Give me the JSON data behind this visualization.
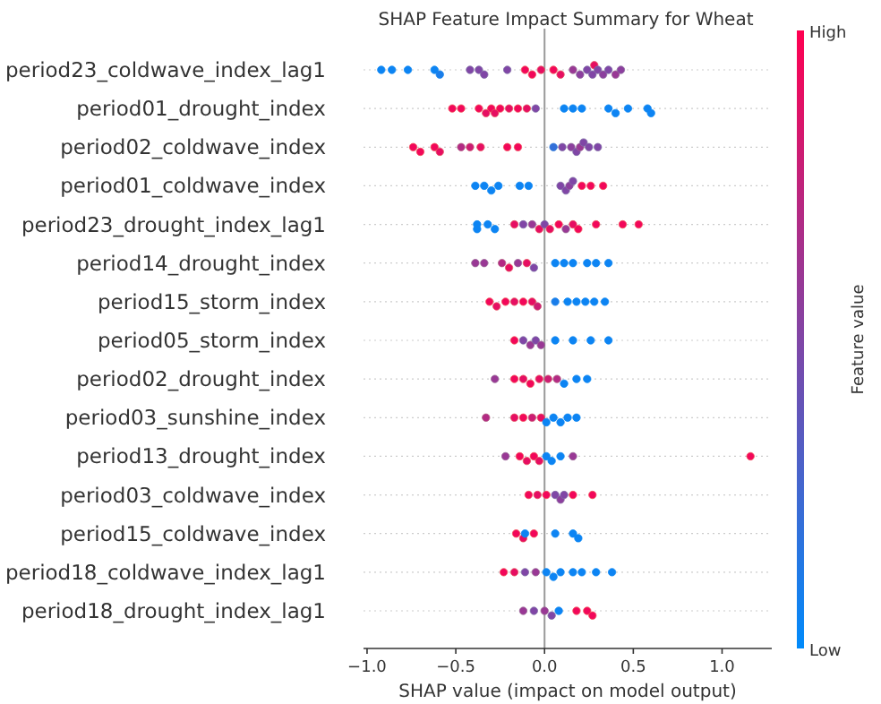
{
  "chart_data": {
    "type": "scatter",
    "orientation": "horizontal",
    "title": "SHAP Feature Impact Summary for Wheat",
    "xlabel": "SHAP value (impact on model output)",
    "clabel": "Feature value",
    "categories": [
      "period23_coldwave_index_lag1",
      "period01_drought_index",
      "period02_coldwave_index",
      "period01_coldwave_index",
      "period23_drought_index_lag1",
      "period14_drought_index",
      "period15_storm_index",
      "period05_storm_index",
      "period02_drought_index",
      "period03_sunshine_index",
      "period13_drought_index",
      "period03_coldwave_index",
      "period15_coldwave_index",
      "period18_coldwave_index_lag1",
      "period18_drought_index_lag1"
    ],
    "xlim": [
      -1.02,
      1.28
    ],
    "xticks": [
      {
        "value": -1,
        "label": "−1.0"
      },
      {
        "value": -0.5,
        "label": "−0.5"
      },
      {
        "value": 0,
        "label": "0.0"
      },
      {
        "value": 0.5,
        "label": "0.5"
      },
      {
        "value": 1,
        "label": "1.0"
      }
    ],
    "clim": [
      0,
      1
    ],
    "cticks": [
      {
        "value": 0,
        "label": "Low"
      },
      {
        "value": 1,
        "label": "High"
      }
    ],
    "grid": "y",
    "marker": "circle",
    "ref_lines": [
      {
        "axis": "x",
        "value": 0,
        "color": "#999999"
      }
    ],
    "series": [
      {
        "x": [
          "period23_coldwave_index_lag1",
          "period23_coldwave_index_lag1",
          "period23_coldwave_index_lag1",
          "period23_coldwave_index_lag1",
          "period23_coldwave_index_lag1",
          "period23_coldwave_index_lag1",
          "period23_coldwave_index_lag1",
          "period23_coldwave_index_lag1",
          "period23_coldwave_index_lag1",
          "period23_coldwave_index_lag1",
          "period23_coldwave_index_lag1",
          "period23_coldwave_index_lag1",
          "period23_coldwave_index_lag1",
          "period23_coldwave_index_lag1",
          "period23_coldwave_index_lag1",
          "period23_coldwave_index_lag1",
          "period23_coldwave_index_lag1",
          "period23_coldwave_index_lag1",
          "period23_coldwave_index_lag1",
          "period23_coldwave_index_lag1",
          "period23_coldwave_index_lag1",
          "period23_coldwave_index_lag1",
          "period23_coldwave_index_lag1",
          "period23_coldwave_index_lag1"
        ],
        "values": [
          -0.92,
          -0.86,
          -0.77,
          -0.62,
          -0.59,
          -0.42,
          -0.37,
          -0.34,
          -0.21,
          -0.11,
          -0.07,
          -0.02,
          0.05,
          0.09,
          0.16,
          0.2,
          0.24,
          0.27,
          0.28,
          0.3,
          0.33,
          0.36,
          0.4,
          0.43
        ],
        "cvalues": [
          0.05,
          0.05,
          0.05,
          0.05,
          0.1,
          0.5,
          0.5,
          0.5,
          0.5,
          0.95,
          0.95,
          0.9,
          0.95,
          0.9,
          0.6,
          0.55,
          0.5,
          0.5,
          0.9,
          0.5,
          0.55,
          0.5,
          0.6,
          0.55
        ],
        "colors": [
          "#0d88f3",
          "#0d88f3",
          "#0d88f3",
          "#0d88f3",
          "#1a85ea",
          "#806ea6",
          "#806ea6",
          "#806ea6",
          "#806ea6",
          "#f2545a",
          "#f2545a",
          "#e65762",
          "#f2545a",
          "#e65762",
          "#996895",
          "#8c6b9e",
          "#806ea6",
          "#806ea6",
          "#e65762",
          "#806ea6",
          "#8c6b9e",
          "#806ea6",
          "#996895",
          "#8c6b9e"
        ]
      },
      {
        "x": [
          "period01_drought_index",
          "period01_drought_index",
          "period01_drought_index",
          "period01_drought_index",
          "period01_drought_index",
          "period01_drought_index",
          "period01_drought_index",
          "period01_drought_index",
          "period01_drought_index",
          "period01_drought_index",
          "period01_drought_index",
          "period01_drought_index",
          "period01_drought_index",
          "period01_drought_index",
          "period01_drought_index",
          "period01_drought_index",
          "period01_drought_index",
          "period01_drought_index",
          "period01_drought_index"
        ],
        "values": [
          -0.52,
          -0.47,
          -0.37,
          -0.33,
          -0.3,
          -0.28,
          -0.25,
          -0.2,
          -0.15,
          -0.1,
          -0.05,
          0.11,
          0.16,
          0.21,
          0.36,
          0.4,
          0.47,
          0.58,
          0.6
        ],
        "cvalues": [
          0.95,
          0.95,
          0.95,
          0.9,
          0.95,
          0.9,
          0.95,
          0.9,
          0.95,
          0.9,
          0.5,
          0.05,
          0.05,
          0.05,
          0.05,
          0.05,
          0.05,
          0.05,
          0.05
        ],
        "colors": [
          "#f2545a",
          "#f2545a",
          "#f2545a",
          "#e65762",
          "#f2545a",
          "#e65762",
          "#f2545a",
          "#e65762",
          "#f2545a",
          "#e65762",
          "#806ea6",
          "#0d88f3",
          "#0d88f3",
          "#0d88f3",
          "#0d88f3",
          "#0d88f3",
          "#0d88f3",
          "#0d88f3",
          "#0d88f3"
        ]
      },
      {
        "x": [
          "period02_coldwave_index",
          "period02_coldwave_index",
          "period02_coldwave_index",
          "period02_coldwave_index",
          "period02_coldwave_index",
          "period02_coldwave_index",
          "period02_coldwave_index",
          "period02_coldwave_index",
          "period02_coldwave_index",
          "period02_coldwave_index",
          "period02_coldwave_index",
          "period02_coldwave_index",
          "period02_coldwave_index",
          "period02_coldwave_index",
          "period02_coldwave_index",
          "period02_coldwave_index",
          "period02_coldwave_index"
        ],
        "values": [
          -0.74,
          -0.7,
          -0.62,
          -0.59,
          -0.47,
          -0.42,
          -0.36,
          -0.21,
          -0.15,
          0.05,
          0.1,
          0.15,
          0.18,
          0.2,
          0.22,
          0.25,
          0.3
        ],
        "cvalues": [
          0.95,
          0.95,
          0.95,
          0.9,
          0.7,
          0.8,
          0.9,
          0.95,
          0.95,
          0.2,
          0.5,
          0.55,
          0.5,
          0.6,
          0.5,
          0.5,
          0.5
        ],
        "colors": [
          "#f2545a",
          "#f2545a",
          "#f2545a",
          "#e65762",
          "#b36284",
          "#cc5d73",
          "#e65762",
          "#f2545a",
          "#f2545a",
          "#337fd9",
          "#806ea6",
          "#8c6b9e",
          "#806ea6",
          "#996895",
          "#806ea6",
          "#806ea6",
          "#806ea6"
        ]
      },
      {
        "x": [
          "period01_coldwave_index",
          "period01_coldwave_index",
          "period01_coldwave_index",
          "period01_coldwave_index",
          "period01_coldwave_index",
          "period01_coldwave_index",
          "period01_coldwave_index",
          "period01_coldwave_index",
          "period01_coldwave_index",
          "period01_coldwave_index",
          "period01_coldwave_index",
          "period01_coldwave_index",
          "period01_coldwave_index"
        ],
        "values": [
          -0.39,
          -0.34,
          -0.3,
          -0.26,
          -0.14,
          -0.09,
          0.09,
          0.12,
          0.14,
          0.16,
          0.21,
          0.26,
          0.33
        ],
        "cvalues": [
          0.05,
          0.05,
          0.05,
          0.05,
          0.05,
          0.05,
          0.5,
          0.5,
          0.55,
          0.5,
          0.95,
          0.95,
          0.95
        ],
        "colors": [
          "#0d88f3",
          "#0d88f3",
          "#0d88f3",
          "#0d88f3",
          "#0d88f3",
          "#0d88f3",
          "#806ea6",
          "#806ea6",
          "#8c6b9e",
          "#806ea6",
          "#f2545a",
          "#f2545a",
          "#f2545a"
        ]
      },
      {
        "x": [
          "period23_drought_index_lag1",
          "period23_drought_index_lag1",
          "period23_drought_index_lag1",
          "period23_drought_index_lag1",
          "period23_drought_index_lag1",
          "period23_drought_index_lag1",
          "period23_drought_index_lag1",
          "period23_drought_index_lag1",
          "period23_drought_index_lag1",
          "period23_drought_index_lag1",
          "period23_drought_index_lag1",
          "period23_drought_index_lag1",
          "period23_drought_index_lag1",
          "period23_drought_index_lag1",
          "period23_drought_index_lag1",
          "period23_drought_index_lag1",
          "period23_drought_index_lag1"
        ],
        "values": [
          -0.38,
          -0.38,
          -0.32,
          -0.28,
          -0.17,
          -0.12,
          -0.07,
          -0.03,
          0,
          0.03,
          0.08,
          0.12,
          0.16,
          0.19,
          0.29,
          0.44,
          0.53
        ],
        "cvalues": [
          0.05,
          0.05,
          0.05,
          0.05,
          0.9,
          0.5,
          0.6,
          0.9,
          0.5,
          0.9,
          0.95,
          0.6,
          0.9,
          0.95,
          0.95,
          0.95,
          0.95
        ],
        "colors": [
          "#0d88f3",
          "#0d88f3",
          "#0d88f3",
          "#0d88f3",
          "#e65762",
          "#806ea6",
          "#996895",
          "#e65762",
          "#806ea6",
          "#e65762",
          "#f2545a",
          "#996895",
          "#e65762",
          "#f2545a",
          "#f2545a",
          "#f2545a",
          "#f2545a"
        ]
      },
      {
        "x": [
          "period14_drought_index",
          "period14_drought_index",
          "period14_drought_index",
          "period14_drought_index",
          "period14_drought_index",
          "period14_drought_index",
          "period14_drought_index",
          "period14_drought_index",
          "period14_drought_index",
          "period14_drought_index",
          "period14_drought_index",
          "period14_drought_index",
          "period14_drought_index"
        ],
        "values": [
          -0.39,
          -0.34,
          -0.24,
          -0.2,
          -0.15,
          -0.1,
          -0.06,
          0.06,
          0.11,
          0.16,
          0.24,
          0.29,
          0.36
        ],
        "cvalues": [
          0.6,
          0.6,
          0.7,
          0.9,
          0.6,
          0.9,
          0.5,
          0.05,
          0.05,
          0.05,
          0.05,
          0.05,
          0.05
        ],
        "colors": [
          "#996895",
          "#996895",
          "#b36284",
          "#e65762",
          "#996895",
          "#e65762",
          "#806ea6",
          "#0d88f3",
          "#0d88f3",
          "#0d88f3",
          "#0d88f3",
          "#0d88f3",
          "#0d88f3"
        ]
      },
      {
        "x": [
          "period15_storm_index",
          "period15_storm_index",
          "period15_storm_index",
          "period15_storm_index",
          "period15_storm_index",
          "period15_storm_index",
          "period15_storm_index",
          "period15_storm_index",
          "period15_storm_index",
          "period15_storm_index",
          "period15_storm_index",
          "period15_storm_index",
          "period15_storm_index"
        ],
        "values": [
          -0.31,
          -0.27,
          -0.22,
          -0.17,
          -0.12,
          -0.07,
          -0.04,
          0.06,
          0.13,
          0.18,
          0.23,
          0.28,
          0.34
        ],
        "cvalues": [
          0.95,
          0.9,
          0.95,
          0.9,
          0.95,
          0.9,
          0.8,
          0.1,
          0.05,
          0.05,
          0.05,
          0.05,
          0.05
        ],
        "colors": [
          "#f2545a",
          "#e65762",
          "#f2545a",
          "#e65762",
          "#f2545a",
          "#e65762",
          "#cc5d73",
          "#1a85ea",
          "#0d88f3",
          "#0d88f3",
          "#0d88f3",
          "#0d88f3",
          "#0d88f3"
        ]
      },
      {
        "x": [
          "period05_storm_index",
          "period05_storm_index",
          "period05_storm_index",
          "period05_storm_index",
          "period05_storm_index",
          "period05_storm_index",
          "period05_storm_index",
          "period05_storm_index",
          "period05_storm_index"
        ],
        "values": [
          -0.17,
          -0.12,
          -0.08,
          -0.05,
          -0.02,
          0.06,
          0.16,
          0.26,
          0.36
        ],
        "cvalues": [
          0.95,
          0.5,
          0.6,
          0.5,
          0.6,
          0.05,
          0.05,
          0.05,
          0.05
        ],
        "colors": [
          "#f2545a",
          "#806ea6",
          "#996895",
          "#806ea6",
          "#996895",
          "#0d88f3",
          "#0d88f3",
          "#0d88f3",
          "#0d88f3"
        ]
      },
      {
        "x": [
          "period02_drought_index",
          "period02_drought_index",
          "period02_drought_index",
          "period02_drought_index",
          "period02_drought_index",
          "period02_drought_index",
          "period02_drought_index",
          "period02_drought_index",
          "period02_drought_index",
          "period02_drought_index"
        ],
        "values": [
          -0.28,
          -0.17,
          -0.12,
          -0.08,
          -0.03,
          0.02,
          0.07,
          0.11,
          0.18,
          0.24
        ],
        "cvalues": [
          0.6,
          0.95,
          0.9,
          0.95,
          0.9,
          0.8,
          0.7,
          0.05,
          0.05,
          0.05
        ],
        "colors": [
          "#996895",
          "#f2545a",
          "#e65762",
          "#f2545a",
          "#e65762",
          "#cc5d73",
          "#b36284",
          "#0d88f3",
          "#0d88f3",
          "#0d88f3"
        ]
      },
      {
        "x": [
          "period03_sunshine_index",
          "period03_sunshine_index",
          "period03_sunshine_index",
          "period03_sunshine_index",
          "period03_sunshine_index",
          "period03_sunshine_index",
          "period03_sunshine_index",
          "period03_sunshine_index",
          "period03_sunshine_index",
          "period03_sunshine_index"
        ],
        "values": [
          -0.33,
          -0.17,
          -0.12,
          -0.07,
          -0.02,
          0.01,
          0.05,
          0.09,
          0.13,
          0.18
        ],
        "cvalues": [
          0.7,
          0.9,
          0.95,
          0.8,
          0.9,
          0.05,
          0.05,
          0.05,
          0.05,
          0.05
        ],
        "colors": [
          "#b36284",
          "#e65762",
          "#f2545a",
          "#cc5d73",
          "#e65762",
          "#0d88f3",
          "#0d88f3",
          "#0d88f3",
          "#0d88f3",
          "#0d88f3"
        ]
      },
      {
        "x": [
          "period13_drought_index",
          "period13_drought_index",
          "period13_drought_index",
          "period13_drought_index",
          "period13_drought_index",
          "period13_drought_index",
          "period13_drought_index",
          "period13_drought_index",
          "period13_drought_index",
          "period13_drought_index"
        ],
        "values": [
          -0.22,
          -0.14,
          -0.1,
          -0.06,
          -0.03,
          0.01,
          0.04,
          0.09,
          0.16,
          1.16
        ],
        "cvalues": [
          0.6,
          0.95,
          0.9,
          0.95,
          0.9,
          0.05,
          0.05,
          0.05,
          0.6,
          0.95
        ],
        "colors": [
          "#996895",
          "#f2545a",
          "#e65762",
          "#f2545a",
          "#e65762",
          "#0d88f3",
          "#0d88f3",
          "#0d88f3",
          "#996895",
          "#f2545a"
        ]
      },
      {
        "x": [
          "period03_coldwave_index",
          "period03_coldwave_index",
          "period03_coldwave_index",
          "period03_coldwave_index",
          "period03_coldwave_index",
          "period03_coldwave_index",
          "period03_coldwave_index",
          "period03_coldwave_index"
        ],
        "values": [
          -0.09,
          -0.04,
          0.01,
          0.06,
          0.09,
          0.11,
          0.16,
          0.27
        ],
        "cvalues": [
          0.95,
          0.9,
          0.95,
          0.5,
          0.55,
          0.5,
          0.95,
          0.95
        ],
        "colors": [
          "#f2545a",
          "#e65762",
          "#f2545a",
          "#806ea6",
          "#8c6b9e",
          "#806ea6",
          "#f2545a",
          "#f2545a"
        ]
      },
      {
        "x": [
          "period15_coldwave_index",
          "period15_coldwave_index",
          "period15_coldwave_index",
          "period15_coldwave_index",
          "period15_coldwave_index",
          "period15_coldwave_index",
          "period15_coldwave_index"
        ],
        "values": [
          -0.16,
          -0.12,
          -0.11,
          -0.06,
          0.06,
          0.16,
          0.19
        ],
        "cvalues": [
          0.95,
          0.9,
          0.05,
          0.95,
          0.05,
          0.05,
          0.05
        ],
        "colors": [
          "#f2545a",
          "#e65762",
          "#0d88f3",
          "#f2545a",
          "#0d88f3",
          "#0d88f3",
          "#0d88f3"
        ]
      },
      {
        "x": [
          "period18_coldwave_index_lag1",
          "period18_coldwave_index_lag1",
          "period18_coldwave_index_lag1",
          "period18_coldwave_index_lag1",
          "period18_coldwave_index_lag1",
          "period18_coldwave_index_lag1",
          "period18_coldwave_index_lag1",
          "period18_coldwave_index_lag1",
          "period18_coldwave_index_lag1",
          "period18_coldwave_index_lag1",
          "period18_coldwave_index_lag1"
        ],
        "values": [
          -0.23,
          -0.17,
          -0.11,
          -0.05,
          0.01,
          0.05,
          0.09,
          0.16,
          0.21,
          0.29,
          0.38
        ],
        "cvalues": [
          0.95,
          0.9,
          0.5,
          0.6,
          0.05,
          0.05,
          0.05,
          0.05,
          0.05,
          0.05,
          0.05
        ],
        "colors": [
          "#f2545a",
          "#e65762",
          "#806ea6",
          "#996895",
          "#0d88f3",
          "#0d88f3",
          "#0d88f3",
          "#0d88f3",
          "#0d88f3",
          "#0d88f3",
          "#0d88f3"
        ]
      },
      {
        "x": [
          "period18_drought_index_lag1",
          "period18_drought_index_lag1",
          "period18_drought_index_lag1",
          "period18_drought_index_lag1",
          "period18_drought_index_lag1",
          "period18_drought_index_lag1",
          "period18_drought_index_lag1",
          "period18_drought_index_lag1"
        ],
        "values": [
          -0.12,
          -0.06,
          0,
          0.04,
          0.08,
          0.18,
          0.24,
          0.27
        ],
        "cvalues": [
          0.6,
          0.5,
          0.6,
          0.5,
          0.05,
          0.95,
          0.95,
          0.95
        ],
        "colors": [
          "#996895",
          "#806ea6",
          "#996895",
          "#806ea6",
          "#0d88f3",
          "#f2545a",
          "#f2545a",
          "#f2545a"
        ]
      }
    ]
  }
}
